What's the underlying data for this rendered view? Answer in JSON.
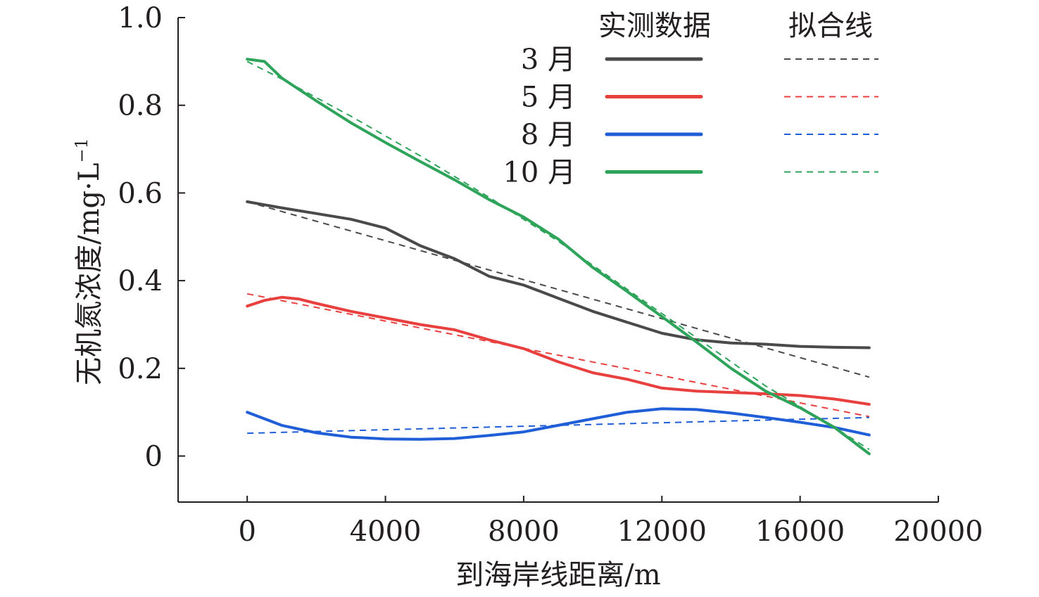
{
  "chart_data": {
    "type": "line",
    "xlabel": "到海岸线距离/m",
    "ylabel": "无机氮浓度/mg·L",
    "ylabel_sup": "−1",
    "xlim": [
      -2000,
      20000
    ],
    "ylim": [
      -0.105,
      1.0
    ],
    "x_ticks": [
      0,
      4000,
      8000,
      12000,
      16000,
      20000
    ],
    "x_tick_labels": [
      "0",
      "4000",
      "8000",
      "12000",
      "16000",
      "20000"
    ],
    "y_ticks": [
      0,
      0.2,
      0.4,
      0.6,
      0.8,
      1.0
    ],
    "y_tick_labels": [
      "0",
      "0.2",
      "0.4",
      "0.6",
      "0.8",
      "1.0"
    ],
    "grid": false,
    "legend": {
      "position": "top-right",
      "measured_header": "实测数据",
      "fit_header": "拟合线"
    },
    "series": [
      {
        "name": "3 月",
        "color": "#4a4a4a",
        "measured": {
          "x": [
            0,
            1000,
            2000,
            3000,
            4000,
            5000,
            6000,
            7000,
            8000,
            9000,
            10000,
            11000,
            12000,
            13000,
            14000,
            15000,
            16000,
            17000,
            18000
          ],
          "y": [
            0.58,
            0.566,
            0.553,
            0.54,
            0.52,
            0.48,
            0.45,
            0.41,
            0.39,
            0.36,
            0.33,
            0.305,
            0.28,
            0.265,
            0.258,
            0.255,
            0.25,
            0.248,
            0.247
          ]
        },
        "fit": {
          "x": [
            0,
            18000
          ],
          "y": [
            0.58,
            0.18
          ]
        }
      },
      {
        "name": "5 月",
        "color": "#e8403f",
        "measured": {
          "x": [
            0,
            500,
            1000,
            1500,
            2000,
            3000,
            4000,
            5000,
            6000,
            7000,
            8000,
            9000,
            10000,
            11000,
            12000,
            13000,
            14000,
            15000,
            16000,
            17000,
            18000
          ],
          "y": [
            0.342,
            0.355,
            0.362,
            0.358,
            0.348,
            0.33,
            0.315,
            0.3,
            0.288,
            0.265,
            0.245,
            0.215,
            0.19,
            0.175,
            0.155,
            0.148,
            0.145,
            0.142,
            0.138,
            0.13,
            0.118
          ]
        },
        "fit": {
          "x": [
            0,
            18000
          ],
          "y": [
            0.37,
            0.09
          ]
        }
      },
      {
        "name": "8 月",
        "color": "#1f5ed6",
        "measured": {
          "x": [
            0,
            1000,
            2000,
            3000,
            4000,
            5000,
            6000,
            7000,
            8000,
            9000,
            10000,
            11000,
            12000,
            13000,
            14000,
            15000,
            16000,
            17000,
            18000
          ],
          "y": [
            0.1,
            0.07,
            0.053,
            0.043,
            0.039,
            0.038,
            0.04,
            0.047,
            0.055,
            0.07,
            0.085,
            0.1,
            0.108,
            0.106,
            0.098,
            0.088,
            0.077,
            0.065,
            0.048
          ]
        },
        "fit": {
          "x": [
            0,
            18000
          ],
          "y": [
            0.052,
            0.088
          ]
        }
      },
      {
        "name": "10 月",
        "color": "#2ea35a",
        "measured": {
          "x": [
            0,
            500,
            1000,
            2000,
            3000,
            4000,
            5000,
            6000,
            7000,
            8000,
            9000,
            10000,
            11000,
            12000,
            13000,
            14000,
            15000,
            16000,
            17000,
            18000
          ],
          "y": [
            0.905,
            0.9,
            0.862,
            0.81,
            0.76,
            0.715,
            0.672,
            0.63,
            0.585,
            0.545,
            0.495,
            0.43,
            0.375,
            0.318,
            0.26,
            0.2,
            0.148,
            0.11,
            0.065,
            0.005
          ]
        },
        "fit": {
          "x": [
            0,
            1000,
            3000,
            5000,
            7000,
            9000,
            11000,
            13000,
            15000,
            17000,
            18000
          ],
          "y": [
            0.9,
            0.86,
            0.775,
            0.685,
            0.59,
            0.49,
            0.38,
            0.27,
            0.16,
            0.065,
            0.015
          ]
        }
      }
    ]
  }
}
